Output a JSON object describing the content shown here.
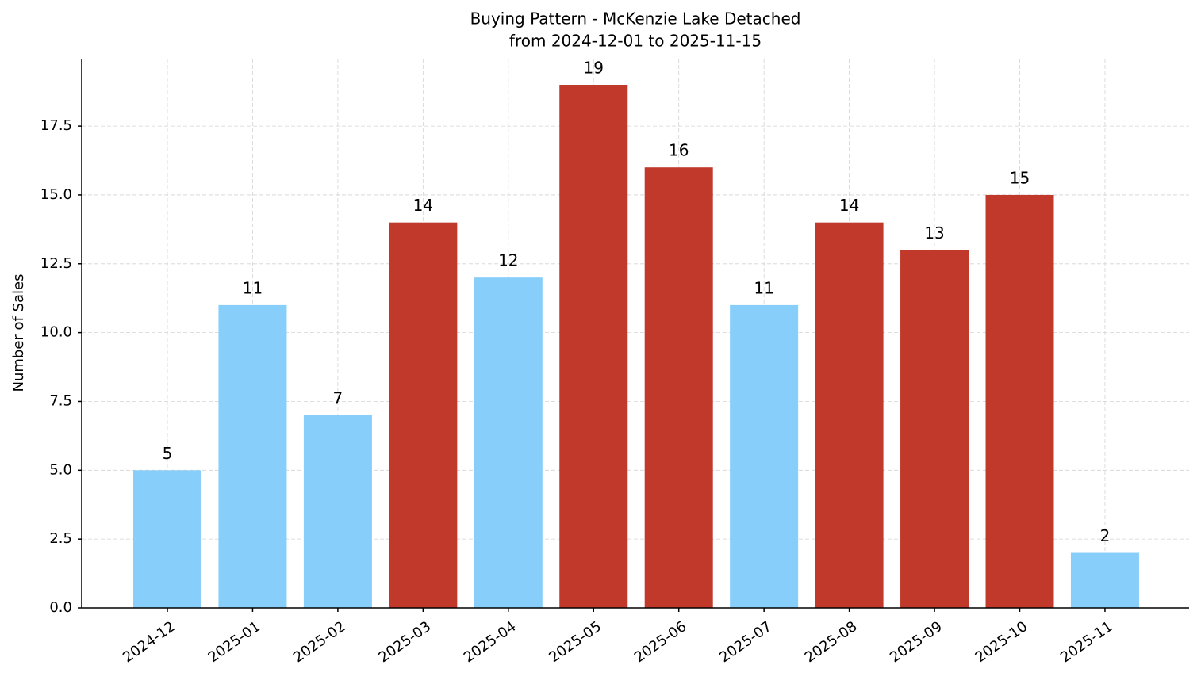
{
  "chart_data": {
    "type": "bar",
    "title": "Buying Pattern - McKenzie Lake Detached",
    "subtitle": "from 2024-12-01 to 2025-11-15",
    "y_label": "Number of Sales",
    "categories": [
      "2024-12",
      "2025-01",
      "2025-02",
      "2025-03",
      "2025-04",
      "2025-05",
      "2025-06",
      "2025-07",
      "2025-08",
      "2025-09",
      "2025-10",
      "2025-11"
    ],
    "values": [
      5,
      11,
      7,
      14,
      12,
      19,
      16,
      11,
      14,
      13,
      15,
      2
    ],
    "colors": [
      "#87cefa",
      "#87cefa",
      "#87cefa",
      "#c0392b",
      "#87cefa",
      "#c0392b",
      "#c0392b",
      "#87cefa",
      "#c0392b",
      "#c0392b",
      "#c0392b",
      "#87cefa"
    ],
    "ylim": [
      0,
      19.95
    ],
    "yticks": [
      {
        "value": 0,
        "label": "0.0"
      },
      2.5,
      {
        "value": 5,
        "label": "5.0"
      },
      7.5,
      {
        "value": 10,
        "label": "10.0"
      },
      12.5,
      {
        "value": 15,
        "label": "15.0"
      },
      17.5
    ],
    "grid": true
  }
}
